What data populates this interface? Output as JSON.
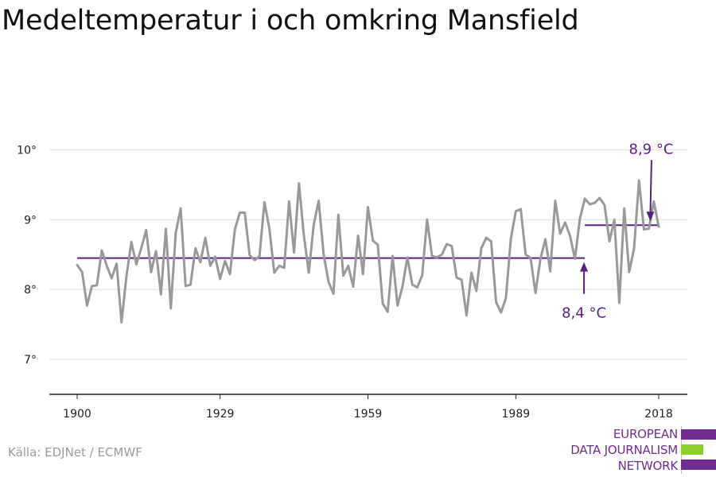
{
  "title": "Medeltemperatur i och omkring Mansfield",
  "source": "Källa: EDJNet / ECMWF",
  "logo": {
    "lines": [
      "EUROPEAN",
      "DATA JOURNALISM",
      "NETWORK"
    ],
    "text_color": "#6f2c91",
    "bar_colors": [
      "#6f2c91",
      "#8bd12a",
      "#6f2c91"
    ]
  },
  "colors": {
    "line": "#999999",
    "reference": "#5b1f80",
    "grid": "#dddddd",
    "axis": "#222222"
  },
  "chart_data": {
    "type": "line",
    "title": "Medeltemperatur i och omkring Mansfield",
    "xlabel": "",
    "ylabel": "",
    "xlim": [
      1900,
      2018
    ],
    "ylim": [
      6.5,
      10.3
    ],
    "grid": true,
    "x_ticks": [
      1900,
      1929,
      1959,
      1989,
      2018
    ],
    "x_tick_labels": [
      "1900",
      "1929",
      "1959",
      "1989",
      "2018"
    ],
    "y_ticks": [
      7,
      8,
      9,
      10
    ],
    "y_tick_labels": [
      "7°",
      "8°",
      "9°",
      "10°"
    ],
    "series": [
      {
        "x_start": 1900,
        "values": [
          8.35,
          8.25,
          7.77,
          8.05,
          8.06,
          8.56,
          8.34,
          8.16,
          8.37,
          7.53,
          8.19,
          8.68,
          8.36,
          8.59,
          8.85,
          8.25,
          8.55,
          7.93,
          8.87,
          7.73,
          8.81,
          9.16,
          8.05,
          8.07,
          8.59,
          8.39,
          8.74,
          8.34,
          8.47,
          8.15,
          8.41,
          8.22,
          8.86,
          9.1,
          9.1,
          8.49,
          8.42,
          8.48,
          9.25,
          8.87,
          8.24,
          8.34,
          8.31,
          9.26,
          8.53,
          9.52,
          8.77,
          8.24,
          8.93,
          9.27,
          8.51,
          8.11,
          7.94,
          9.07,
          8.2,
          8.34,
          8.04,
          8.77,
          8.22,
          9.18,
          8.7,
          8.64,
          7.8,
          7.68,
          8.48,
          7.77,
          8.04,
          8.46,
          8.07,
          8.03,
          8.2,
          9.0,
          8.48,
          8.46,
          8.5,
          8.65,
          8.62,
          8.17,
          8.14,
          7.63,
          8.24,
          7.98,
          8.59,
          8.74,
          8.69,
          7.82,
          7.67,
          7.88,
          8.73,
          9.12,
          9.15,
          8.5,
          8.45,
          7.95,
          8.44,
          8.72,
          8.26,
          9.27,
          8.8,
          8.96,
          8.77,
          8.44,
          9.01,
          9.3,
          9.22,
          9.24,
          9.31,
          9.21,
          8.69,
          9.0,
          7.81,
          9.16,
          8.25,
          8.59,
          9.56,
          8.86,
          8.87,
          9.26,
          8.9
        ]
      }
    ],
    "reference_lines": [
      {
        "label": "8,4 °C",
        "value": 8.45,
        "x_from": 1900,
        "x_to": 2003
      },
      {
        "label": "8,9 °C",
        "value": 8.92,
        "x_from": 2003,
        "x_to": 2018
      }
    ]
  }
}
